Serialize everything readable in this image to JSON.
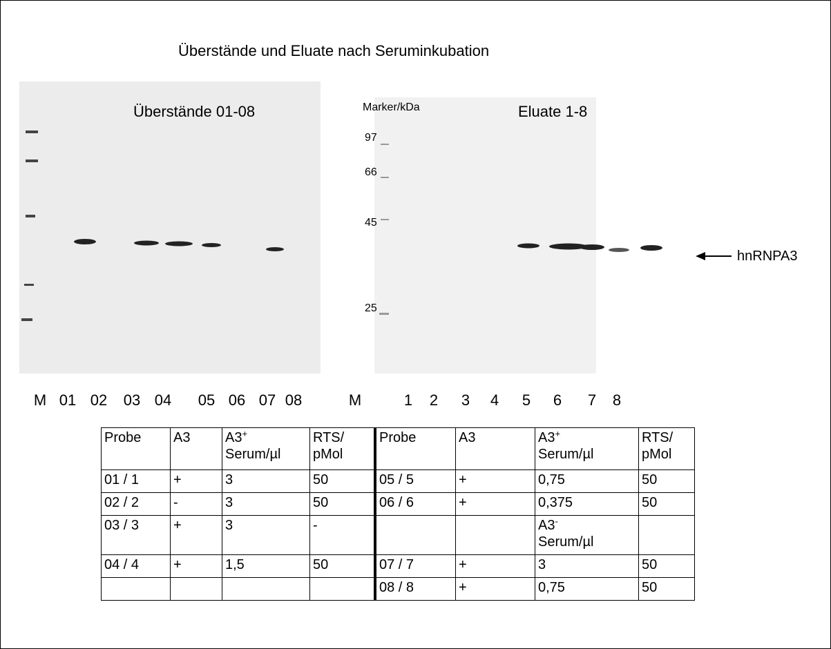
{
  "title": "Überstände und Eluate nach Seruminkubation",
  "left_blot": {
    "label": "Überstände 01-08",
    "lanes": [
      "M",
      "01",
      "02",
      "03",
      "04",
      "05",
      "06",
      "07",
      "08"
    ]
  },
  "right_blot": {
    "label": "Eluate 1-8",
    "marker_title": "Marker/kDa",
    "markers": [
      "97",
      "66",
      "45",
      "25"
    ],
    "lanes": [
      "M",
      "1",
      "2",
      "3",
      "4",
      "5",
      "6",
      "7",
      "8"
    ]
  },
  "arrow_label": "hnRNPA3",
  "table": {
    "header": [
      {
        "line1": "Probe"
      },
      {
        "line1": "A3"
      },
      {
        "line1": "A3",
        "sup": "+",
        "line2": "Serum/µl"
      },
      {
        "line1": "RTS/",
        "line2": "pMol"
      },
      {
        "line1": "Probe"
      },
      {
        "line1": "A3"
      },
      {
        "line1": "A3",
        "sup": "+",
        "line2": "Serum/µl"
      },
      {
        "line1": "RTS/",
        "line2": "pMol"
      }
    ],
    "rows": [
      [
        "01 / 1",
        "+",
        "3",
        "50",
        "05 / 5",
        "+",
        "0,75",
        "50"
      ],
      [
        "02 / 2",
        "-",
        "3",
        "50",
        "06 / 6",
        "+",
        "0,375",
        "50"
      ],
      [
        "03 / 3",
        "+",
        "3",
        "-",
        null,
        null,
        {
          "line1": "A3",
          "sup": "-",
          "line2": "Serum/µl"
        },
        null
      ],
      [
        "04 / 4",
        "+",
        "1,5",
        "50",
        "07 / 7",
        "+",
        "3",
        "50"
      ],
      [
        null,
        null,
        null,
        null,
        "08 / 8",
        "+",
        "0,75",
        "50"
      ]
    ]
  }
}
